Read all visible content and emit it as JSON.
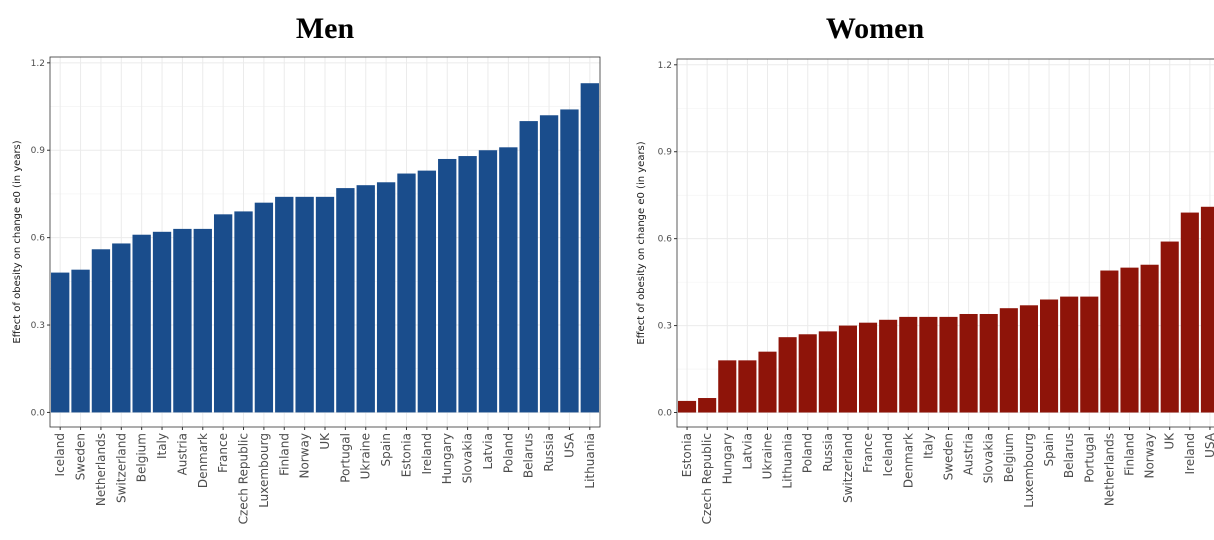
{
  "chart_data": [
    {
      "type": "bar",
      "title": "Men",
      "ylabel": "Effect of obesity on change e0 (in years)",
      "xlabel": "",
      "ylim": [
        -0.05,
        1.22
      ],
      "yticks": [
        "0.0",
        "0.3",
        "0.6",
        "0.9",
        "1.2"
      ],
      "color": "#1a4d8c",
      "categories": [
        "Iceland",
        "Sweden",
        "Netherlands",
        "Switzerland",
        "Belgium",
        "Italy",
        "Austria",
        "Denmark",
        "France",
        "Czech Republic",
        "Luxembourg",
        "Finland",
        "Norway",
        "UK",
        "Portugal",
        "Ukraine",
        "Spain",
        "Estonia",
        "Ireland",
        "Hungary",
        "Slovakia",
        "Latvia",
        "Poland",
        "Belarus",
        "Russia",
        "USA",
        "Lithuania"
      ],
      "values": [
        0.48,
        0.49,
        0.56,
        0.58,
        0.61,
        0.62,
        0.63,
        0.63,
        0.68,
        0.69,
        0.72,
        0.74,
        0.74,
        0.74,
        0.77,
        0.78,
        0.79,
        0.82,
        0.83,
        0.87,
        0.88,
        0.9,
        0.91,
        1.0,
        1.02,
        1.04,
        1.13
      ],
      "grid": true,
      "legend": "none"
    },
    {
      "type": "bar",
      "title": "Women",
      "ylabel": "Effect of obesity on change e0 (in years)",
      "xlabel": "",
      "ylim": [
        -0.05,
        1.22
      ],
      "yticks": [
        "0.0",
        "0.3",
        "0.6",
        "0.9",
        "1.2"
      ],
      "color": "#8e1409",
      "categories": [
        "Estonia",
        "Czech Republic",
        "Hungary",
        "Latvia",
        "Ukraine",
        "Lithuania",
        "Poland",
        "Russia",
        "Switzerland",
        "France",
        "Iceland",
        "Denmark",
        "Italy",
        "Sweden",
        "Austria",
        "Slovakia",
        "Belgium",
        "Luxembourg",
        "Spain",
        "Belarus",
        "Portugal",
        "Netherlands",
        "Finland",
        "Norway",
        "UK",
        "Ireland",
        "USA"
      ],
      "values": [
        0.04,
        0.05,
        0.18,
        0.18,
        0.21,
        0.26,
        0.27,
        0.28,
        0.3,
        0.31,
        0.32,
        0.33,
        0.33,
        0.33,
        0.34,
        0.34,
        0.36,
        0.37,
        0.39,
        0.4,
        0.4,
        0.49,
        0.5,
        0.51,
        0.59,
        0.69,
        0.71
      ],
      "grid": true,
      "legend": "none"
    }
  ]
}
